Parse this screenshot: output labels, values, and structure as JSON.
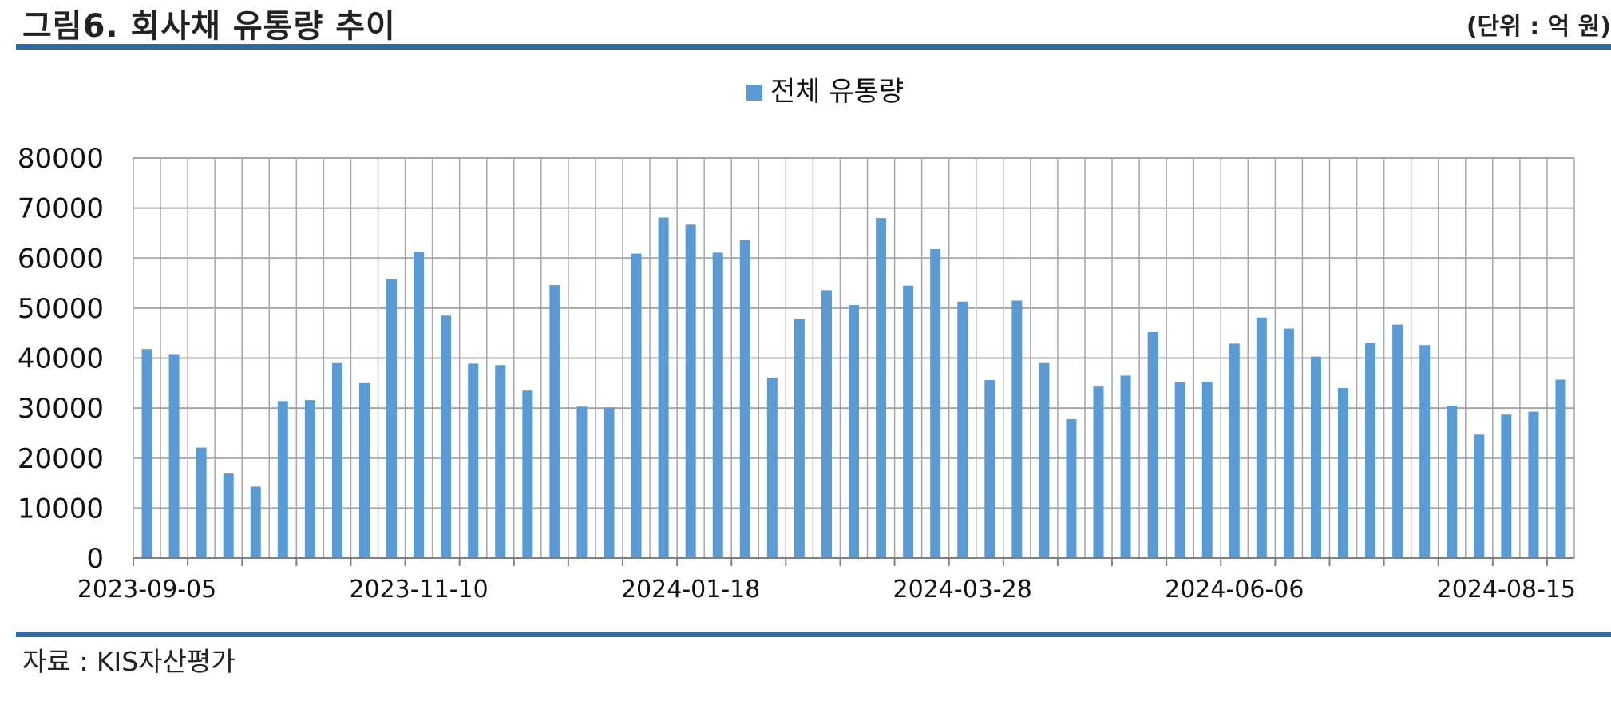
{
  "header": {
    "title": "그림6. 회사채 유통량 추이",
    "unit": "(단위 : 억 원)"
  },
  "footer": {
    "source": "자료 : KIS자산평가"
  },
  "colors": {
    "bar": "#5b9bd5",
    "rule": "#2e6da4",
    "grid": "#a6a6a6"
  },
  "chart_data": {
    "type": "bar",
    "title": "",
    "xlabel": "",
    "ylabel": "",
    "ylim": [
      0,
      80000
    ],
    "yticks": [
      0,
      10000,
      20000,
      30000,
      40000,
      50000,
      60000,
      70000,
      80000
    ],
    "grid": true,
    "legend_position": "top-center",
    "x_tick_labels": [
      "2023-09-05",
      "2023-11-10",
      "2024-01-18",
      "2024-03-28",
      "2024-06-06",
      "2024-08-15"
    ],
    "x_tick_label_positions": [
      0,
      10,
      20,
      30,
      40,
      50
    ],
    "series": [
      {
        "name": "전체 유통량",
        "values": [
          41800,
          40800,
          22100,
          16900,
          14300,
          31400,
          31600,
          39000,
          35000,
          55800,
          61200,
          48500,
          38900,
          38600,
          33500,
          54600,
          30300,
          30100,
          60900,
          68100,
          66700,
          61100,
          63600,
          36100,
          47800,
          53600,
          50600,
          68000,
          54500,
          61800,
          51300,
          35600,
          51500,
          39000,
          27800,
          34300,
          36500,
          45200,
          35200,
          35300,
          42900,
          48100,
          45900,
          40300,
          34000,
          43000,
          46700,
          42600,
          30500,
          24700,
          28700,
          29300,
          35700
        ]
      }
    ]
  }
}
